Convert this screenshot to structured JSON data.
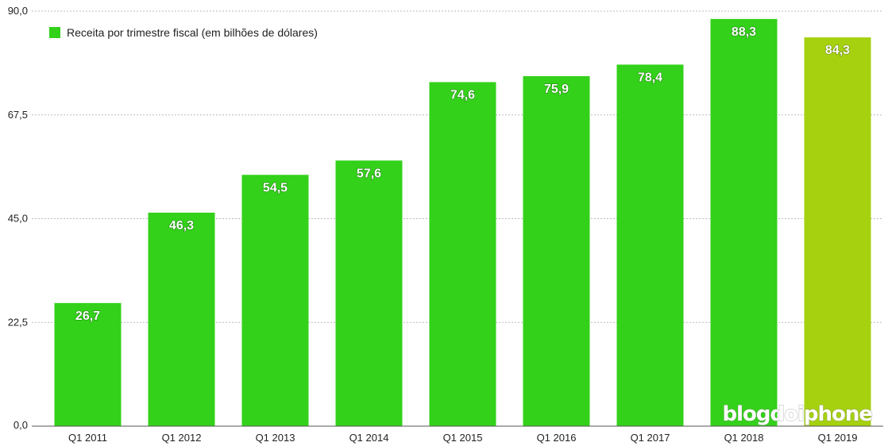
{
  "chart_data": {
    "type": "bar",
    "title": "",
    "xlabel": "",
    "ylabel": "",
    "ylim": [
      0,
      90
    ],
    "yticks": [
      "0,0",
      "22,5",
      "45,0",
      "67,5",
      "90,0"
    ],
    "ytick_values": [
      0,
      22.5,
      45,
      67.5,
      90
    ],
    "grid": true,
    "legend_position": "top-left",
    "categories": [
      "Q1 2011",
      "Q1 2012",
      "Q1 2013",
      "Q1 2014",
      "Q1 2015",
      "Q1 2016",
      "Q1 2017",
      "Q1 2018",
      "Q1 2019"
    ],
    "series": [
      {
        "name": "Receita por trimestre fiscal (em bilhões de dólares)",
        "values": [
          26.7,
          46.3,
          54.5,
          57.6,
          74.6,
          75.9,
          78.4,
          88.3,
          84.3
        ],
        "labels": [
          "26,7",
          "46,3",
          "54,5",
          "57,6",
          "74,6",
          "75,9",
          "78,4",
          "88,3",
          "84,3"
        ]
      }
    ],
    "colors": {
      "bar": "#33d11a",
      "highlight": "#a6d10f",
      "highlight_index": 8,
      "grid": "#bbbbbb",
      "axis": "#555555"
    },
    "watermark": "blogdoiphone"
  }
}
